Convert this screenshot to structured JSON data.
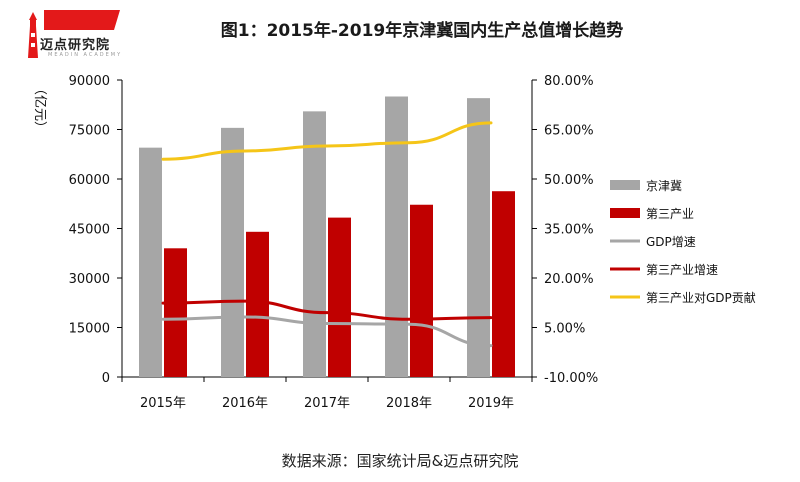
{
  "header": {
    "title": "图1：2015年-2019年京津冀国内生产总值增长趋势",
    "logo_text": "迈点研究院",
    "logo_sub": "MEADIN ACADEMY"
  },
  "footer": {
    "source": "数据来源：国家统计局&迈点研究院"
  },
  "colors": {
    "jjj": "#a6a6a6",
    "tertiary": "#c00000",
    "gdp_growth": "#a6a6a6",
    "tertiary_growth": "#c00000",
    "contribution": "#f5c518",
    "logo_red": "#e3191a"
  },
  "chart_data": {
    "type": "bar",
    "categories": [
      "2015年",
      "2016年",
      "2017年",
      "2018年",
      "2019年"
    ],
    "ylabel": "（亿元）",
    "ylim": [
      0,
      90000
    ],
    "y_ticks": [
      "0",
      "15000",
      "30000",
      "45000",
      "60000",
      "75000",
      "90000"
    ],
    "y2lim": [
      -10,
      80
    ],
    "y2_ticks": [
      "-10.00%",
      "5.00%",
      "20.00%",
      "35.00%",
      "50.00%",
      "65.00%",
      "80.00%"
    ],
    "bar_series": [
      {
        "name": "京津冀",
        "values": [
          69500,
          75500,
          80500,
          85000,
          84500
        ]
      },
      {
        "name": "第三产业",
        "values": [
          39000,
          44000,
          48300,
          52200,
          56300
        ]
      }
    ],
    "line_series": [
      {
        "name": "GDP增速",
        "values": [
          7.5,
          8.2,
          6.2,
          6.0,
          -0.5
        ]
      },
      {
        "name": "第三产业增速",
        "values": [
          12.4,
          13.0,
          9.5,
          7.5,
          8.0
        ]
      },
      {
        "name": "第三产业对GDP贡献",
        "values": [
          56.0,
          58.5,
          60.0,
          61.0,
          67.0
        ]
      }
    ],
    "legend_position": "right",
    "grid": false
  }
}
